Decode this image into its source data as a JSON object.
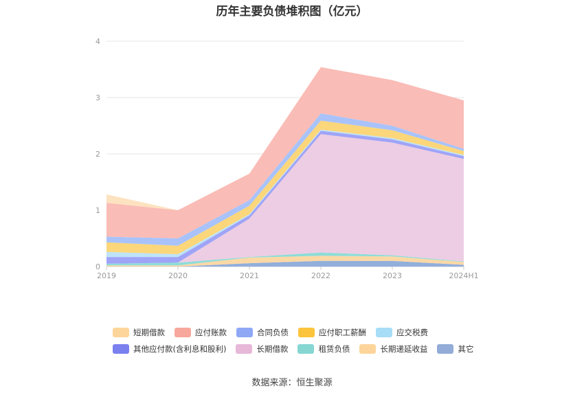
{
  "title": "历年主要负债堆积图（亿元）",
  "source": "数据来源：恒生聚源",
  "chart_data": {
    "type": "area",
    "stacked": true,
    "categories": [
      "2019",
      "2020",
      "2021",
      "2022",
      "2023",
      "2024H1"
    ],
    "ylim": [
      0,
      4
    ],
    "yticks": [
      0,
      1,
      2,
      3,
      4
    ],
    "grid": true,
    "legend_position": "bottom",
    "series": [
      {
        "name": "其它",
        "color": "#92aedb",
        "values": [
          0.0,
          0.0,
          0.06,
          0.1,
          0.1,
          0.03
        ]
      },
      {
        "name": "长期递延收益",
        "color": "#fcd8a5",
        "values": [
          0.02,
          0.02,
          0.1,
          0.09,
          0.08,
          0.05
        ]
      },
      {
        "name": "租赁负债",
        "color": "#8fdcd7",
        "values": [
          0.03,
          0.05,
          0.01,
          0.06,
          0.02,
          0.01
        ]
      },
      {
        "name": "长期借款",
        "color": "#edcde3",
        "values": [
          0.0,
          0.0,
          0.68,
          2.1,
          2.0,
          1.82
        ]
      },
      {
        "name": "其他应付款(含利息和股利)",
        "color": "#9fa4f7",
        "values": [
          0.12,
          0.1,
          0.06,
          0.06,
          0.06,
          0.05
        ]
      },
      {
        "name": "应交税费",
        "color": "#bee3f7",
        "values": [
          0.09,
          0.05,
          0.02,
          0.02,
          0.02,
          0.02
        ]
      },
      {
        "name": "应付职工薪酬",
        "color": "#fbd67a",
        "values": [
          0.17,
          0.15,
          0.15,
          0.16,
          0.14,
          0.07
        ]
      },
      {
        "name": "合同负债",
        "color": "#a9c3fa",
        "values": [
          0.1,
          0.13,
          0.1,
          0.13,
          0.08,
          0.04
        ]
      },
      {
        "name": "应付账款",
        "color": "#fabcb6",
        "values": [
          0.6,
          0.5,
          0.47,
          0.82,
          0.81,
          0.86
        ]
      },
      {
        "name": "短期借款",
        "color": "#fde2c0",
        "values": [
          0.15,
          0.0,
          0.0,
          0.0,
          0.0,
          0.0
        ]
      }
    ]
  },
  "legend": [
    [
      {
        "name": "短期借款",
        "color": "#fdd59b"
      },
      {
        "name": "应付账款",
        "color": "#f7a79b"
      },
      {
        "name": "合同负债",
        "color": "#8ea8f6"
      },
      {
        "name": "应付职工薪酬",
        "color": "#fbc43c"
      },
      {
        "name": "应交税费",
        "color": "#a8ddf7"
      }
    ],
    [
      {
        "name": "其他应付款(含利息和股利)",
        "color": "#7b80ef"
      },
      {
        "name": "长期借款",
        "color": "#e7b8d8"
      },
      {
        "name": "租赁负债",
        "color": "#86d6d2"
      },
      {
        "name": "长期递延收益",
        "color": "#fdd59b"
      },
      {
        "name": "其它",
        "color": "#93acd8"
      }
    ]
  ]
}
